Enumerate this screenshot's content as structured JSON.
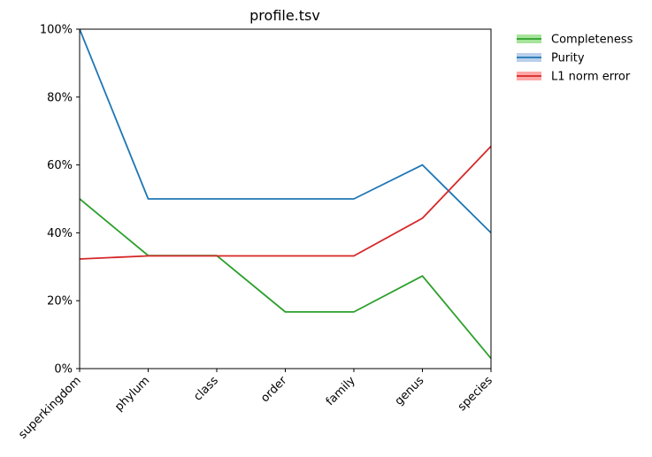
{
  "chart_data": {
    "type": "line",
    "title": "profile.tsv",
    "xlabel": "",
    "ylabel": "",
    "categories": [
      "superkingdom",
      "phylum",
      "class",
      "order",
      "family",
      "genus",
      "species"
    ],
    "ylim": [
      0,
      100
    ],
    "y_ticks": [
      "0%",
      "20%",
      "40%",
      "60%",
      "80%",
      "100%"
    ],
    "grid": false,
    "legend_position": "outside-top-right",
    "series": [
      {
        "name": "Completeness",
        "color": "#2ca02c",
        "band_color": "#98df8a",
        "values": [
          50.0,
          33.3,
          33.3,
          16.7,
          16.7,
          27.3,
          3.0
        ]
      },
      {
        "name": "Purity",
        "color": "#1f77b4",
        "band_color": "#aec7e8",
        "values": [
          100.0,
          50.0,
          50.0,
          50.0,
          50.0,
          60.0,
          40.0
        ]
      },
      {
        "name": "L1 norm error",
        "color": "#d62728",
        "band_color": "#ff9896",
        "values": [
          32.3,
          33.2,
          33.2,
          33.2,
          33.2,
          44.3,
          65.5
        ]
      }
    ]
  }
}
